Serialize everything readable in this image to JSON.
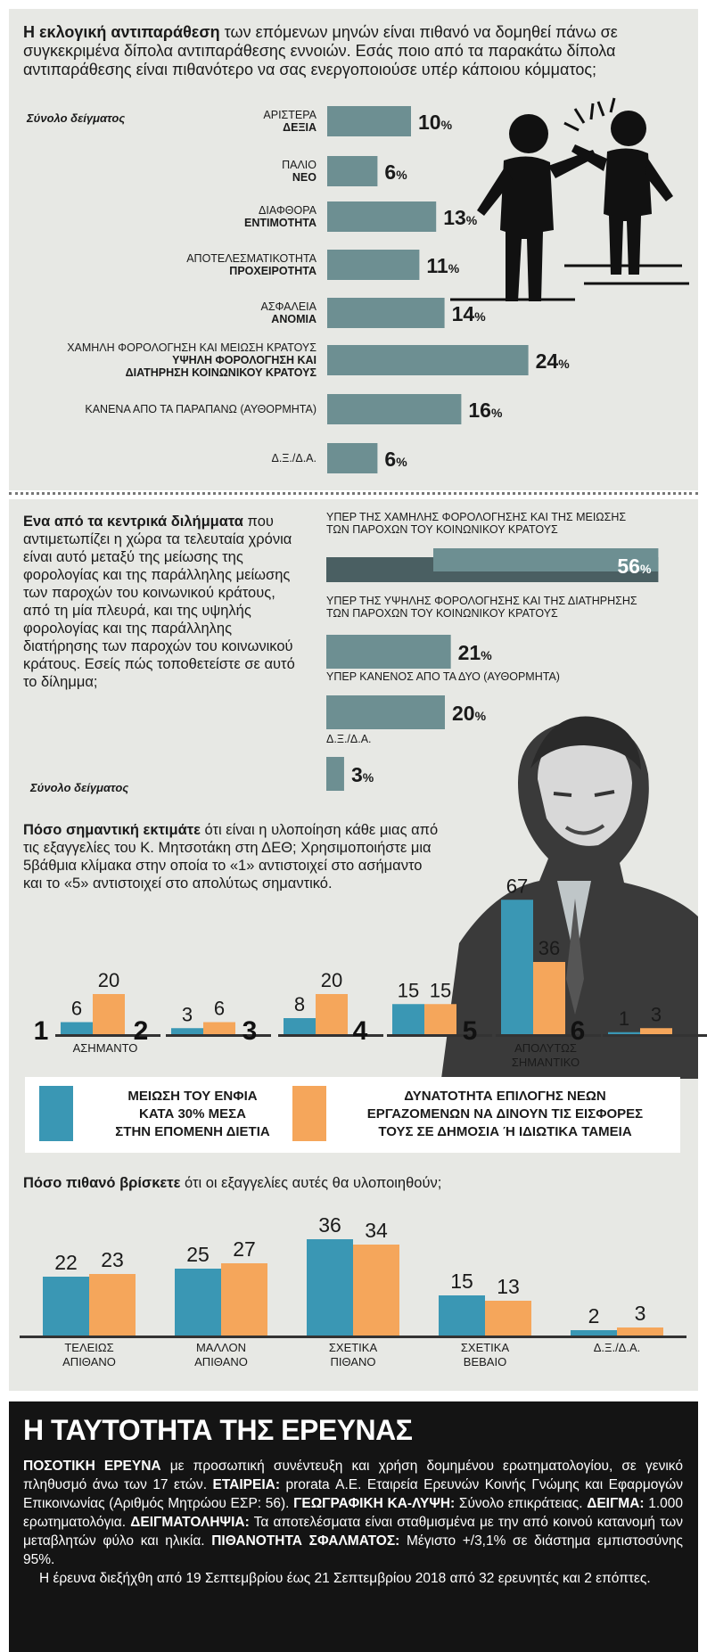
{
  "section1": {
    "intro_bold": "Η εκλογική αντιπαράθεση",
    "intro_rest": " των επόμενων μηνών είναι πιθανό να δομηθεί πάνω σε συγκεκριμένα δίπολα αντιπαράθεσης εννοιών. Εσάς ποιο από τα παρακάτω δίπολα αντιπαράθεσης είναι πιθανότερο να σας ενεργοποιούσε υπέρ κάποιου κόμματος;",
    "sample": "Σύνολο δείγματος"
  },
  "section2": {
    "intro_bold": "Ενα από τα κεντρικά διλήμματα",
    "intro_rest": " που αντιμετωπίζει η χώρα τα τελευταία χρόνια είναι αυτό μεταξύ της μείωσης της φορολογίας και της παράλληλης μείωσης των παροχών του κοινωνικού κράτους, από τη μία πλευρά, και της υψηλής φορολογίας και της παράλληλης διατήρησης των παροχών του κοινωνικού κράτους. Εσείς πώς τοποθετείστε σε αυτό το δίλημμα;",
    "sample": "Σύνολο δείγματος"
  },
  "section3": {
    "intro_bold": "Πόσο σημαντική εκτιμάτε",
    "intro_rest": " ότι είναι η υλοποίηση κάθε μιας από τις εξαγγελίες του Κ. Μητσοτάκη στη ΔΕΘ; Χρησιμοποιήστε μια 5βάθμια κλίμακα στην οποία το «1» αντιστοιχεί στο ασήμαντο και το «5» αντιστοιχεί στο απολύτως σημαντικό."
  },
  "legend": {
    "teal_label": "ΜΕΙΩΣΗ ΤΟΥ ΕΝΦΙΑ ΚΑΤΑ 30% ΜΕΣΑ ΣΤΗΝ ΕΠΟΜΕΝΗ ΔΙΕΤΙΑ",
    "teal_l1": "ΜΕΙΩΣΗ ΤΟΥ ΕΝΦΙΑ",
    "teal_l2": "ΚΑΤΑ 30% ΜΕΣΑ",
    "teal_l3": "ΣΤΗΝ ΕΠΟΜΕΝΗ ΔΙΕΤΙΑ",
    "orange_l1": "ΔΥΝΑΤΟΤΗΤΑ ΕΠΙΛΟΓΗΣ ΝΕΩΝ",
    "orange_l2": "ΕΡΓΑΖΟΜΕΝΩΝ ΝΑ ΔΙΝΟΥΝ ΤΙΣ ΕΙΣΦΟΡΕΣ",
    "orange_l3": "ΤΟΥΣ ΣΕ ΔΗΜΟΣΙΑ Ή ΙΔΙΩΤΙΚΑ ΤΑΜΕΙΑ",
    "teal_color": "#3a97b4",
    "orange_color": "#f5a65b"
  },
  "section4": {
    "intro_bold": "Πόσο πιθανό βρίσκετε",
    "intro_rest": " ότι οι εξαγγελίες αυτές θα υλοποιηθούν;"
  },
  "footer": {
    "title": "Η ΤΑΥΤΟΤΗΤΑ ΤΗΣ ΕΡΕΥΝΑΣ",
    "p1_b1": "ΠΟΣΟΤΙΚΗ ΕΡΕΥΝΑ",
    "p1_t1": " με προσωπική συνέντευξη και χρήση δομημένου ερωτηματολογίου, σε γενικό πληθυσμό άνω των 17 ετών. ",
    "p1_b2": "ΕΤΑΙΡΕΙΑ:",
    "p1_t2": " prorata Α.Ε. Εταιρεία Ερευνών Κοινής Γνώμης και Εφαρμογών Επικοινωνίας (Αριθμός Μητρώου ΕΣΡ: 56). ",
    "p1_b3": "ΓΕΩΓΡΑΦΙΚΗ ΚΑ-ΛΥΨΗ:",
    "p1_t3": " Σύνολο επικράτειας. ",
    "p1_b4": "ΔΕΙΓΜΑ:",
    "p1_t4": " 1.000 ερωτηματολόγια. ",
    "p1_b5": "ΔΕΙΓΜΑΤΟΛΗΨΙΑ:",
    "p1_t5": " Τα αποτελέσματα είναι σταθμισμένα με την από κοινού κατανομή των μεταβλητών φύλο και ηλικία. ",
    "p1_b6": "ΠΙΘΑΝΟΤΗΤΑ ΣΦΑΛΜΑΤΟΣ:",
    "p1_t6": " Μέγιστο +/3,1% σε διάστημα εμπιστοσύνης 95%.",
    "p2": "Η έρευνα διεξήχθη από 19 Σεπτεμβρίου έως 21 Σεπτεμβρίου 2018 από 32 ερευνητές και 2 επόπτες."
  },
  "colors": {
    "bar": "#6d8f92",
    "bar_dark": "#4a5f62",
    "panel": "#e7e8e4",
    "teal": "#3a97b4",
    "orange": "#f5a65b"
  },
  "chart_data": [
    {
      "type": "bar",
      "orientation": "horizontal",
      "title": "Η εκλογική αντιπαράθεση",
      "categories": [
        [
          "ΑΡΙΣΤΕΡΑ",
          "ΔΕΞΙΑ"
        ],
        [
          "ΠΑΛΙΟ",
          "ΝΕΟ"
        ],
        [
          "ΔΙΑΦΘΟΡΑ",
          "ΕΝΤΙΜΟΤΗΤΑ"
        ],
        [
          "ΑΠΟΤΕΛΕΣΜΑΤΙΚΟΤΗΤΑ",
          "ΠΡΟΧΕΙΡΟΤΗΤΑ"
        ],
        [
          "ΑΣΦΑΛΕΙΑ",
          "ΑΝΟΜΙΑ"
        ],
        [
          "ΧΑΜΗΛΗ ΦΟΡΟΛΟΓΗΣΗ ΚΑΙ ΜΕΙΩΣΗ ΚΡΑΤΟΥΣ",
          "ΥΨΗΛΗ ΦΟΡΟΛΟΓΗΣΗ ΚΑΙ",
          "ΔΙΑΤΗΡΗΣΗ ΚΟΙΝΩΝΙΚΟΥ ΚΡΑΤΟΥΣ"
        ],
        [
          "ΚΑΝΕΝΑ ΑΠΟ ΤΑ ΠΑΡΑΠΑΝΩ (ΑΥΘΟΡΜΗΤΑ)"
        ],
        [
          "Δ.Ξ./Δ.Α."
        ]
      ],
      "values": [
        10,
        6,
        13,
        11,
        14,
        24,
        16,
        6
      ],
      "unit": "%"
    },
    {
      "type": "bar",
      "orientation": "horizontal",
      "title": "Ενα από τα κεντρικά διλήμματα",
      "categories": [
        [
          "ΥΠΕΡ ΤΗΣ ΧΑΜΗΛΗΣ ΦΟΡΟΛΟΓΗΣΗΣ ΚΑΙ ΤΗΣ ΜΕΙΩΣΗΣ",
          "ΤΩΝ ΠΑΡΟΧΩΝ ΤΟΥ ΚΟΙΝΩΝΙΚΟΥ ΚΡΑΤΟΥΣ"
        ],
        [
          "ΥΠΕΡ ΤΗΣ ΥΨΗΛΗΣ ΦΟΡΟΛΟΓΗΣΗΣ ΚΑΙ ΤΗΣ ΔΙΑΤΗΡΗΣΗΣ",
          "ΤΩΝ ΠΑΡΟΧΩΝ ΤΟΥ ΚΟΙΝΩΝΙΚΟΥ ΚΡΑΤΟΥΣ"
        ],
        [
          "ΥΠΕΡ ΚΑΝΕΝΟΣ ΑΠΟ ΤΑ ΔΥΟ (ΑΥΘΟΡΜΗΤΑ)"
        ],
        [
          "Δ.Ξ./Δ.Α."
        ]
      ],
      "values": [
        56,
        21,
        20,
        3
      ],
      "unit": "%"
    },
    {
      "type": "bar",
      "title": "Πόσο σημαντική εκτιμάτε",
      "categories": [
        "1",
        "2",
        "3",
        "4",
        "5",
        "6"
      ],
      "category_notes": [
        "ΑΣΗΜΑΝΤΟ",
        "",
        "",
        "",
        "ΑΠΟΛΥΤΩΣ ΣΗΜΑΝΤΙΚΟ",
        ""
      ],
      "series": [
        {
          "name": "ΜΕΙΩΣΗ ΤΟΥ ΕΝΦΙΑ ΚΑΤΑ 30% ΜΕΣΑ ΣΤΗΝ ΕΠΟΜΕΝΗ ΔΙΕΤΙΑ",
          "color": "#3a97b4",
          "values": [
            6,
            3,
            8,
            15,
            67,
            1
          ]
        },
        {
          "name": "ΔΥΝΑΤΟΤΗΤΑ ΕΠΙΛΟΓΗΣ ΝΕΩΝ ΕΡΓΑΖΟΜΕΝΩΝ ΝΑ ΔΙΝΟΥΝ ΤΙΣ ΕΙΣΦΟΡΕΣ ΤΟΥΣ ΣΕ ΔΗΜΟΣΙΑ Ή ΙΔΙΩΤΙΚΑ ΤΑΜΕΙΑ",
          "color": "#f5a65b",
          "values": [
            20,
            6,
            20,
            15,
            36,
            3
          ]
        }
      ]
    },
    {
      "type": "bar",
      "title": "Πόσο πιθανό βρίσκετε",
      "categories": [
        [
          "ΤΕΛΕΙΩΣ",
          "ΑΠΙΘΑΝΟ"
        ],
        [
          "ΜΑΛΛΟΝ",
          "ΑΠΙΘΑΝΟ"
        ],
        [
          "ΣΧΕΤΙΚΑ",
          "ΠΙΘΑΝΟ"
        ],
        [
          "ΣΧΕΤΙΚΑ",
          "ΒΕΒΑΙΟ"
        ],
        [
          "Δ.Ξ./Δ.Α."
        ]
      ],
      "series": [
        {
          "name": "ΜΕΙΩΣΗ ΤΟΥ ΕΝΦΙΑ ΚΑΤΑ 30% ΜΕΣΑ ΣΤΗΝ ΕΠΟΜΕΝΗ ΔΙΕΤΙΑ",
          "color": "#3a97b4",
          "values": [
            22,
            25,
            36,
            15,
            2
          ]
        },
        {
          "name": "ΔΥΝΑΤΟΤΗΤΑ ΕΠΙΛΟΓΗΣ ΝΕΩΝ ΕΡΓΑΖΟΜΕΝΩΝ ΝΑ ΔΙΝΟΥΝ ΤΙΣ ΕΙΣΦΟΡΕΣ ΤΟΥΣ ΣΕ ΔΗΜΟΣΙΑ Ή ΙΔΙΩΤΙΚΑ ΤΑΜΕΙΑ",
          "color": "#f5a65b",
          "values": [
            23,
            27,
            34,
            13,
            3
          ]
        }
      ]
    }
  ]
}
